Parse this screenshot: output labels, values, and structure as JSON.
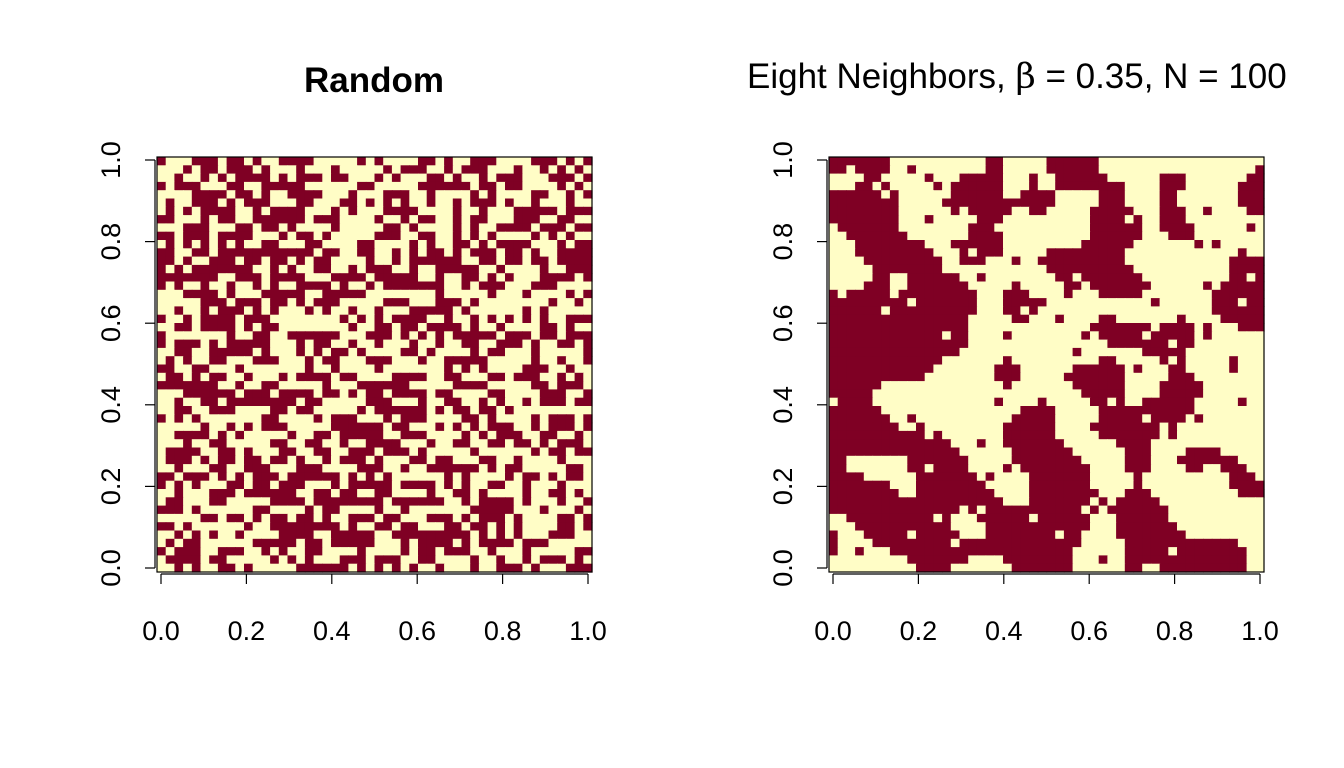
{
  "chart_data": [
    {
      "type": "heatmap",
      "title": "Random",
      "xlabel": "",
      "ylabel": "",
      "xlim": [
        0,
        1
      ],
      "ylim": [
        0,
        1
      ],
      "x_ticks": [
        "0.0",
        "0.2",
        "0.4",
        "0.6",
        "0.8",
        "1.0"
      ],
      "y_ticks": [
        "0.0",
        "0.2",
        "0.4",
        "0.6",
        "0.8",
        "1.0"
      ],
      "grid": false,
      "legend": "none",
      "grid_size": [
        50,
        50
      ],
      "colors": {
        "0": "#fffdc6",
        "1": "#7f0024"
      },
      "pattern": "random"
    },
    {
      "type": "heatmap",
      "title_parts": {
        "prefix": "Eight Neighbors, ",
        "symbol": "β",
        "suffix": " = 0.35, N = 100"
      },
      "xlabel": "",
      "ylabel": "",
      "xlim": [
        0,
        1
      ],
      "ylim": [
        0,
        1
      ],
      "x_ticks": [
        "0.0",
        "0.2",
        "0.4",
        "0.6",
        "0.8",
        "1.0"
      ],
      "y_ticks": [
        "0.0",
        "0.2",
        "0.4",
        "0.6",
        "0.8",
        "1.0"
      ],
      "grid": false,
      "legend": "none",
      "grid_size": [
        50,
        50
      ],
      "colors": {
        "0": "#fffdc6",
        "1": "#7f0024"
      },
      "pattern": "clustered"
    }
  ]
}
